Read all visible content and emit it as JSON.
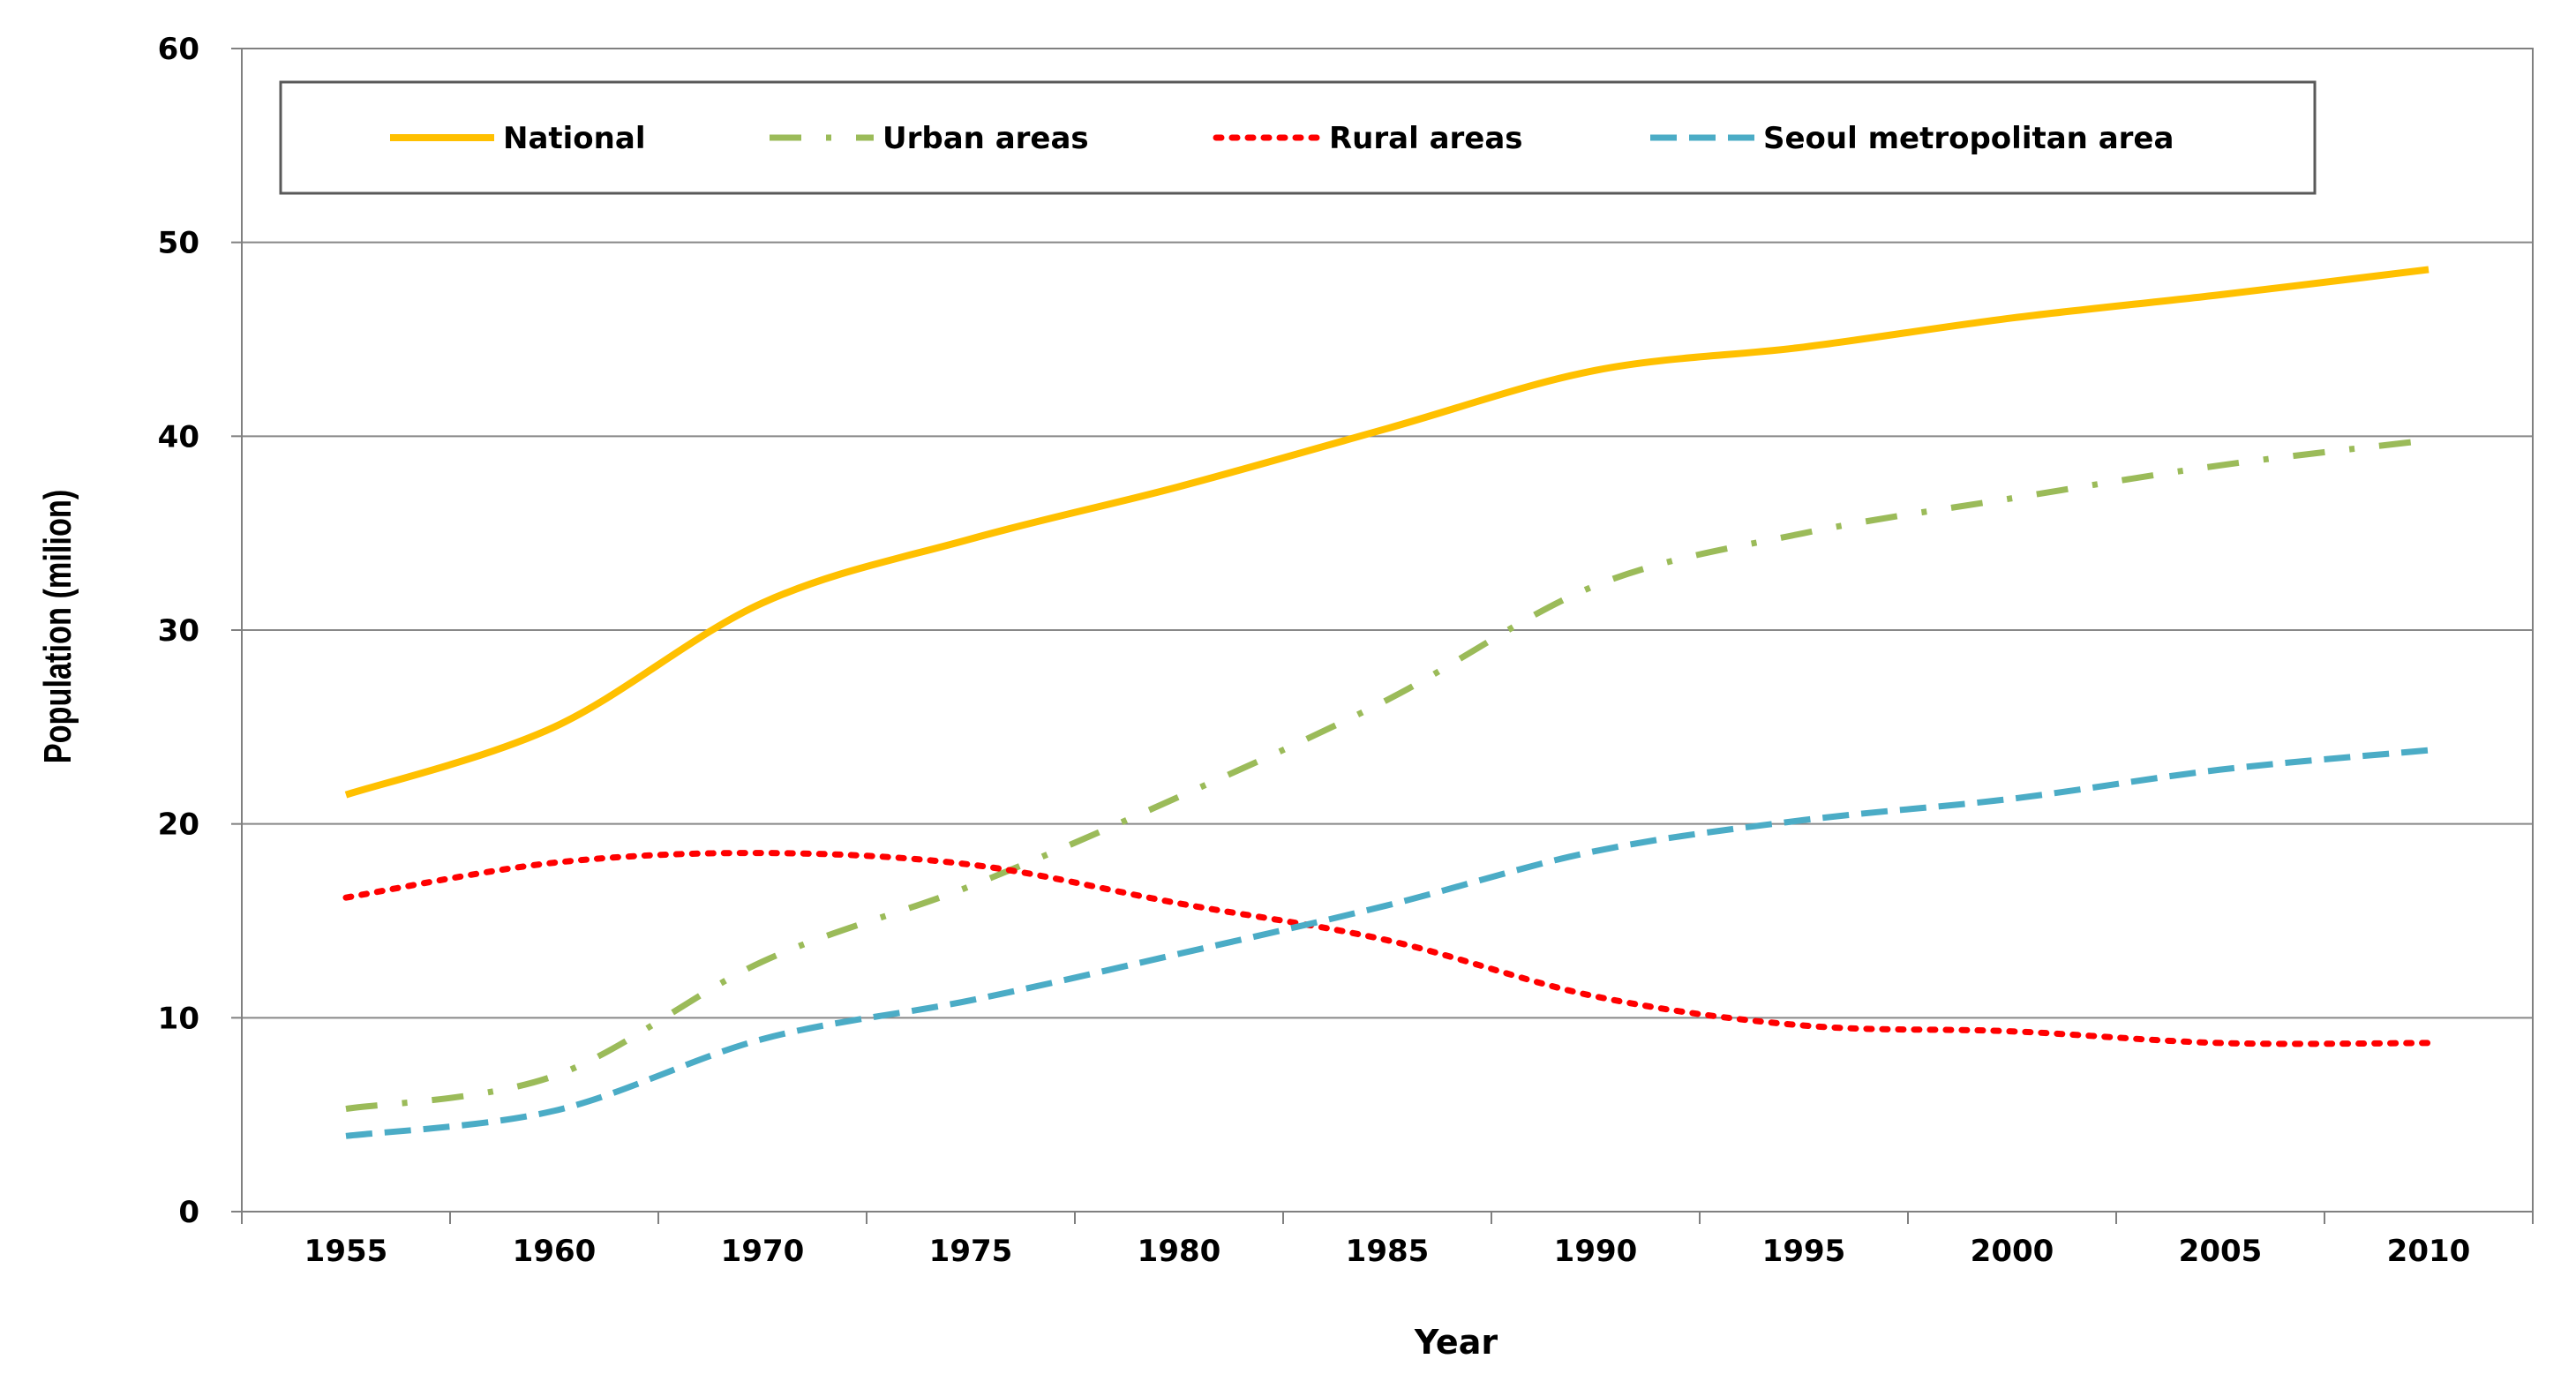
{
  "chart_data": {
    "type": "line",
    "title": "",
    "xlabel": "Year",
    "ylabel": "Population (milion)",
    "categories": [
      "1955",
      "1960",
      "1970",
      "1975",
      "1980",
      "1985",
      "1990",
      "1995",
      "2000",
      "2005",
      "2010"
    ],
    "ylim": [
      0,
      60
    ],
    "yticks": [
      "0",
      "10",
      "20",
      "30",
      "40",
      "50",
      "60"
    ],
    "grid": true,
    "legend_position": "top",
    "series": [
      {
        "name": "National",
        "style": "solid",
        "color": "#FFC000",
        "values": [
          21.5,
          25.0,
          31.4,
          34.7,
          37.4,
          40.4,
          43.4,
          44.6,
          46.1,
          47.3,
          48.6
        ]
      },
      {
        "name": "Urban areas",
        "style": "dashdot",
        "color": "#9BBB59",
        "values": [
          5.3,
          7.0,
          12.9,
          16.8,
          21.4,
          26.4,
          32.3,
          35.0,
          36.8,
          38.5,
          39.8
        ]
      },
      {
        "name": "Rural areas",
        "style": "dotted",
        "color": "#FF0000",
        "values": [
          16.2,
          18.0,
          18.5,
          17.9,
          15.9,
          14.0,
          11.1,
          9.6,
          9.3,
          8.7,
          8.7
        ]
      },
      {
        "name": "Seoul metropolitan area",
        "style": "dashed",
        "color": "#4BACC6",
        "values": [
          3.9,
          5.2,
          8.9,
          10.9,
          13.3,
          15.8,
          18.6,
          20.2,
          21.3,
          22.8,
          23.8
        ]
      }
    ]
  }
}
